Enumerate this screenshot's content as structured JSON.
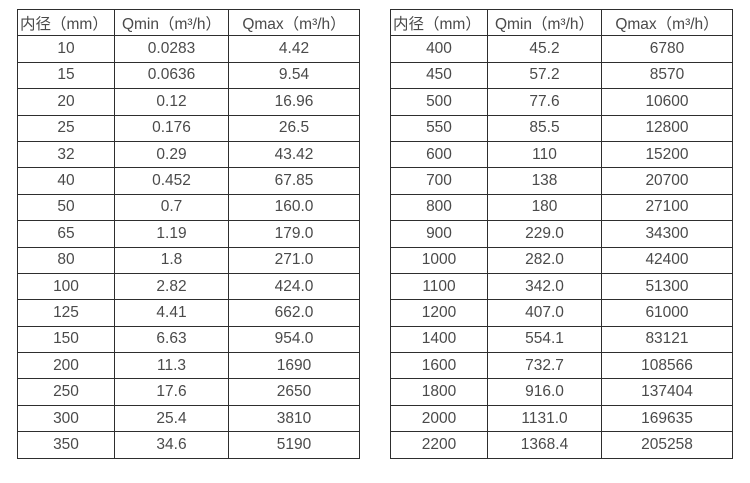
{
  "page": {
    "background_color": "#ffffff",
    "text_color": "#4a4a4a",
    "border_color": "#2e2e2e"
  },
  "tables": [
    {
      "name": "flow-range-table-small-diameters",
      "headers": [
        "内径（mm）",
        "Qmin（m³/h）",
        "Qmax（m³/h）"
      ],
      "rows": [
        [
          "10",
          "0.0283",
          "4.42"
        ],
        [
          "15",
          "0.0636",
          "9.54"
        ],
        [
          "20",
          "0.12",
          "16.96"
        ],
        [
          "25",
          "0.176",
          "26.5"
        ],
        [
          "32",
          "0.29",
          "43.42"
        ],
        [
          "40",
          "0.452",
          "67.85"
        ],
        [
          "50",
          "0.7",
          "160.0"
        ],
        [
          "65",
          "1.19",
          "179.0"
        ],
        [
          "80",
          "1.8",
          "271.0"
        ],
        [
          "100",
          "2.82",
          "424.0"
        ],
        [
          "125",
          "4.41",
          "662.0"
        ],
        [
          "150",
          "6.63",
          "954.0"
        ],
        [
          "200",
          "11.3",
          "1690"
        ],
        [
          "250",
          "17.6",
          "2650"
        ],
        [
          "300",
          "25.4",
          "3810"
        ],
        [
          "350",
          "34.6",
          "5190"
        ]
      ]
    },
    {
      "name": "flow-range-table-large-diameters",
      "headers": [
        "内径（mm）",
        "Qmin（m³/h）",
        "Qmax（m³/h）"
      ],
      "rows": [
        [
          "400",
          "45.2",
          "6780"
        ],
        [
          "450",
          "57.2",
          "8570"
        ],
        [
          "500",
          "77.6",
          "10600"
        ],
        [
          "550",
          "85.5",
          "12800"
        ],
        [
          "600",
          "110",
          "15200"
        ],
        [
          "700",
          "138",
          "20700"
        ],
        [
          "800",
          "180",
          "27100"
        ],
        [
          "900",
          "229.0",
          "34300"
        ],
        [
          "1000",
          "282.0",
          "42400"
        ],
        [
          "1100",
          "342.0",
          "51300"
        ],
        [
          "1200",
          "407.0",
          "61000"
        ],
        [
          "1400",
          "554.1",
          "83121"
        ],
        [
          "1600",
          "732.7",
          "108566"
        ],
        [
          "1800",
          "916.0",
          "137404"
        ],
        [
          "2000",
          "1131.0",
          "169635"
        ],
        [
          "2200",
          "1368.4",
          "205258"
        ]
      ]
    }
  ]
}
